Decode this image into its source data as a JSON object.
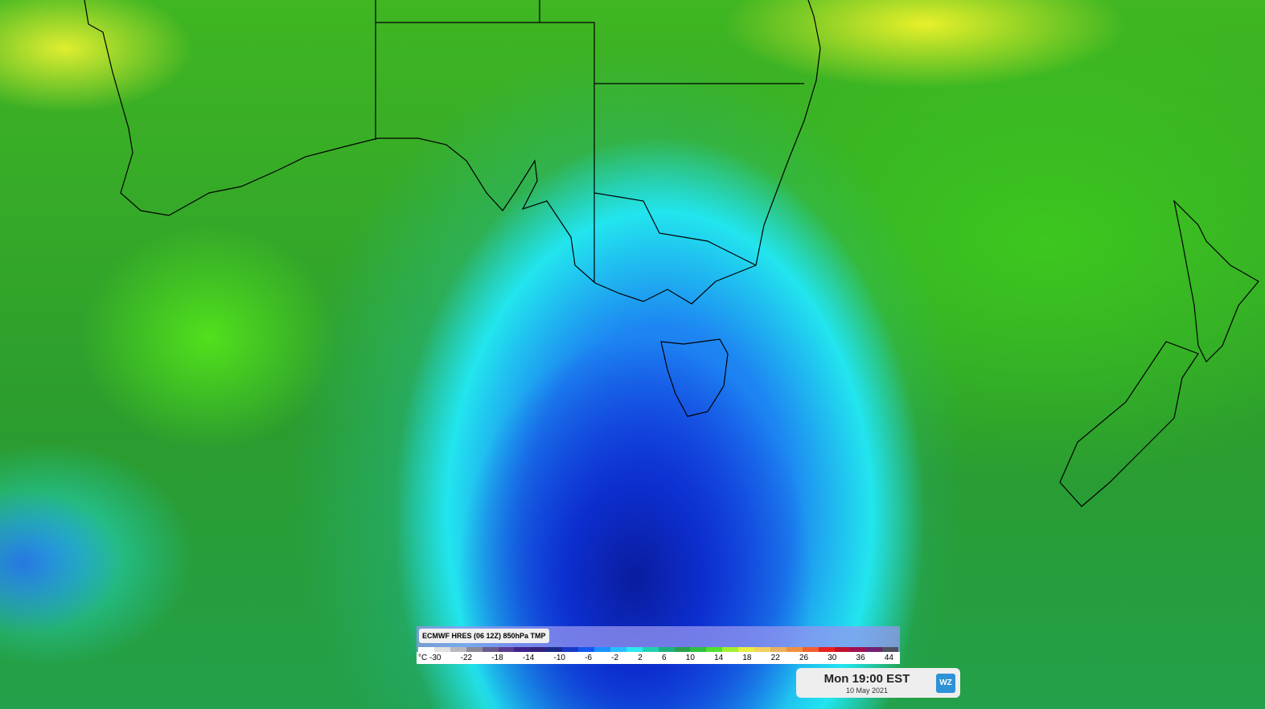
{
  "legend": {
    "title": "ECMWF HRES (06 12Z) 850hPa TMP",
    "unit": "°C",
    "labels": [
      -30,
      -22,
      -18,
      -14,
      -10,
      -6,
      -2,
      2,
      6,
      10,
      14,
      18,
      22,
      26,
      30,
      36,
      44
    ],
    "colors": [
      "#ffffff",
      "#e0e0e0",
      "#b8b8c0",
      "#8a8a9a",
      "#6a5a8a",
      "#5a3a90",
      "#40208a",
      "#30207a",
      "#1a2a8a",
      "#1838c8",
      "#1458f0",
      "#1e90ff",
      "#28c0ff",
      "#30e8f0",
      "#20d0b0",
      "#20b080",
      "#2aa050",
      "#30c040",
      "#50e030",
      "#a0f030",
      "#e8f040",
      "#f0d060",
      "#e8b060",
      "#f09040",
      "#f06030",
      "#e82020",
      "#c01030",
      "#a01050",
      "#702070",
      "#505060"
    ]
  },
  "time": {
    "label": "Mon 19:00 EST",
    "date": "10 May 2021"
  },
  "logo": "WZ"
}
